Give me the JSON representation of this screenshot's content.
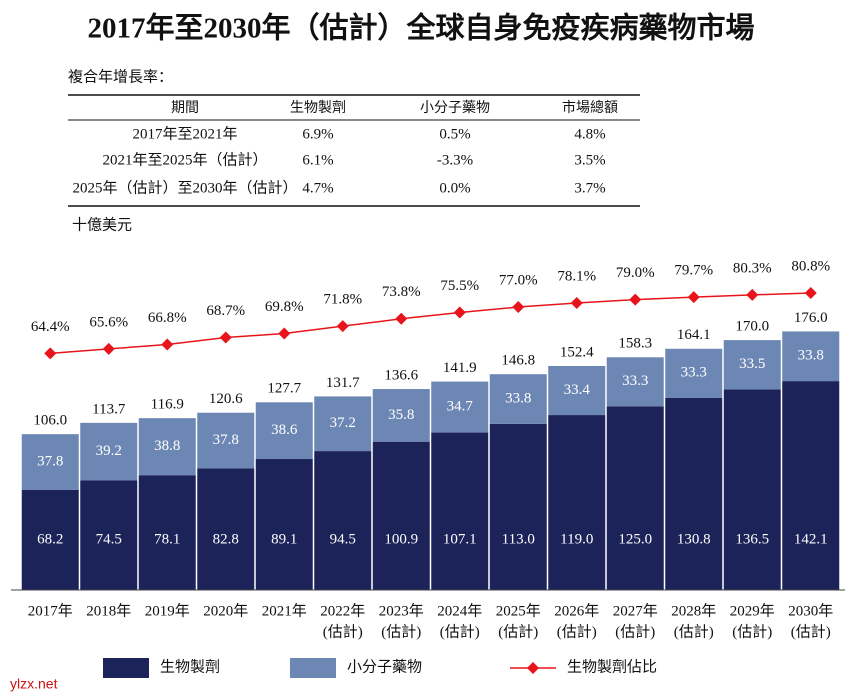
{
  "title": "2017年至2030年（估計）全球自身免疫疾病藥物市場",
  "table": {
    "caption": "複合年增長率：",
    "header": [
      "期間",
      "生物製劑",
      "小分子藥物",
      "市場總額"
    ],
    "rows": [
      [
        "2017年至2021年",
        "6.9%",
        "0.5%",
        "4.8%"
      ],
      [
        "2021年至2025年（估計）",
        "6.1%",
        "-3.3%",
        "3.5%"
      ],
      [
        "2025年（估計）至2030年（估計）",
        "4.7%",
        "0.0%",
        "3.7%"
      ]
    ]
  },
  "watermark": "ylzx.net",
  "chart_data": {
    "type": "bar",
    "stacked": true,
    "unit_label": "十億美元",
    "categories": [
      "2017年",
      "2018年",
      "2019年",
      "2020年",
      "2021年",
      "2022年",
      "2023年",
      "2024年",
      "2025年",
      "2026年",
      "2027年",
      "2028年",
      "2029年",
      "2030年"
    ],
    "category_sublabels": [
      null,
      null,
      null,
      null,
      null,
      "(估計)",
      "(估計)",
      "(估計)",
      "(估計)",
      "(估計)",
      "(估計)",
      "(估計)",
      "(估計)",
      "(估計)"
    ],
    "ylim": [
      0,
      200
    ],
    "y2lim": [
      0,
      80
    ],
    "series": [
      {
        "name": "生物製劑",
        "color": "#1b2359",
        "values": [
          68.2,
          74.5,
          78.1,
          82.8,
          89.1,
          94.5,
          100.9,
          107.1,
          113.0,
          119.0,
          125.0,
          130.8,
          136.5,
          142.1
        ],
        "value_labels": [
          "68.2",
          "74.5",
          "78.1",
          "82.8",
          "89.1",
          "94.5",
          "100.9",
          "107.1",
          "113.0",
          "119.0",
          "125.0",
          "130.8",
          "136.5",
          "142.1"
        ]
      },
      {
        "name": "小分子藥物",
        "color": "#6d87b4",
        "values": [
          37.8,
          39.2,
          38.8,
          37.8,
          38.6,
          37.2,
          35.8,
          34.7,
          33.8,
          33.4,
          33.3,
          33.3,
          33.5,
          33.8
        ],
        "value_labels": [
          "37.8",
          "39.2",
          "38.8",
          "37.8",
          "38.6",
          "37.2",
          "35.8",
          "34.7",
          "33.8",
          "33.4",
          "33.3",
          "33.3",
          "33.5",
          "33.8"
        ]
      },
      {
        "name": "生物製劑佔比",
        "color": "#e8141b",
        "type": "line",
        "axis": "y2",
        "values": [
          64.4,
          65.6,
          66.8,
          68.7,
          69.8,
          71.8,
          73.8,
          75.5,
          77.0,
          78.1,
          79.0,
          79.7,
          80.3,
          80.8
        ],
        "value_labels": [
          "64.4%",
          "65.6%",
          "66.8%",
          "68.7%",
          "69.8%",
          "71.8%",
          "73.8%",
          "75.5%",
          "77.0%",
          "78.1%",
          "79.0%",
          "79.7%",
          "80.3%",
          "80.8%"
        ]
      }
    ],
    "totals": [
      106.0,
      113.7,
      116.9,
      120.6,
      127.7,
      131.7,
      136.6,
      141.9,
      146.8,
      152.4,
      158.3,
      164.1,
      170.0,
      176.0
    ],
    "total_labels": [
      "106.0",
      "113.7",
      "116.9",
      "120.6",
      "127.7",
      "131.7",
      "136.6",
      "141.9",
      "146.8",
      "152.4",
      "158.3",
      "164.1",
      "170.0",
      "176.0"
    ]
  }
}
